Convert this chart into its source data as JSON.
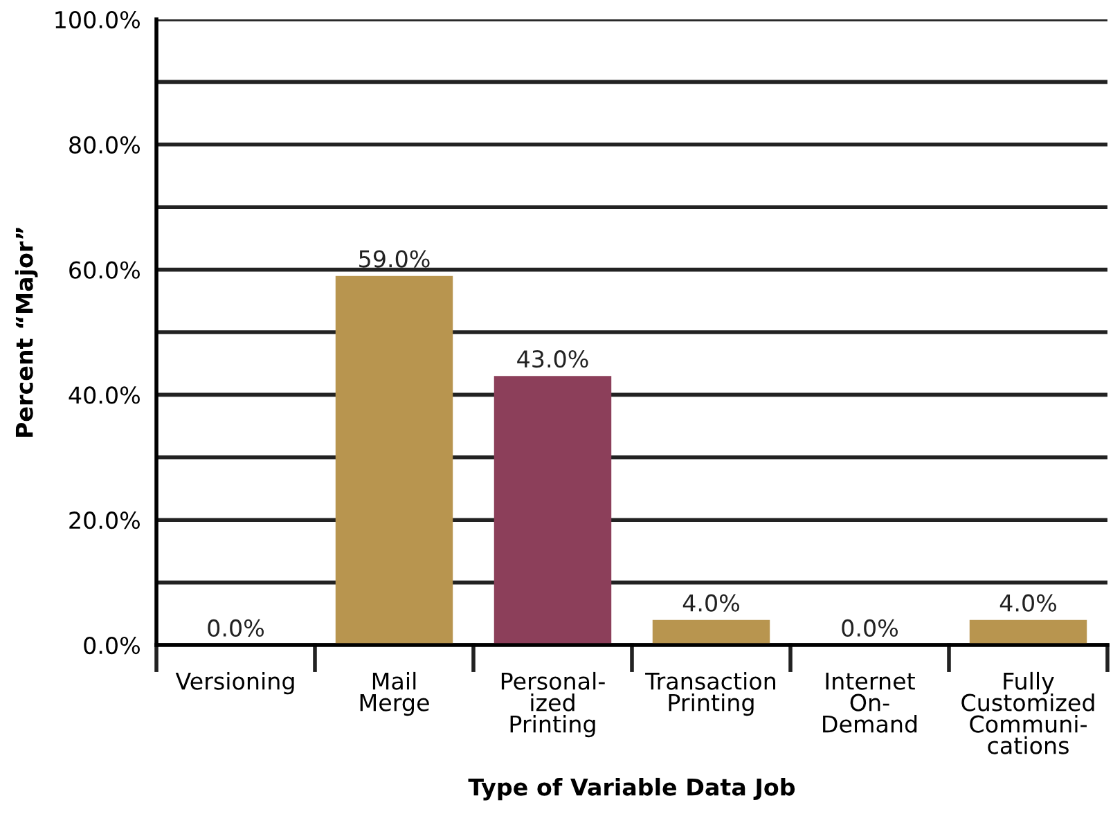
{
  "chart_data": {
    "type": "bar",
    "xlabel": "Type of Variable Data Job",
    "ylabel": "Percent “Major”",
    "categories": [
      "Versioning",
      "Mail\nMerge",
      "Personal-\nized\nPrinting",
      "Transaction\nPrinting",
      "Internet\nOn-\nDemand",
      "Fully\nCustomized\nCommuni-\ncations"
    ],
    "values": [
      0,
      59,
      43,
      4,
      0,
      4
    ],
    "colors": [
      "#b8954f",
      "#b8954f",
      "#8c3f5a",
      "#b8954f",
      "#b8954f",
      "#b8954f"
    ],
    "value_labels": [
      "0.0%",
      "59.0%",
      "43.0%",
      "4.0%",
      "0.0%",
      "4.0%"
    ],
    "ylim": [
      0,
      100
    ],
    "yticks": [
      {
        "value": 0,
        "label": "0.0%"
      },
      {
        "value": 10,
        "label": null
      },
      {
        "value": 20,
        "label": "20.0%"
      },
      {
        "value": 30,
        "label": null
      },
      {
        "value": 40,
        "label": "40.0%"
      },
      {
        "value": 50,
        "label": null
      },
      {
        "value": 60,
        "label": "60.0%"
      },
      {
        "value": 70,
        "label": null
      },
      {
        "value": 80,
        "label": "80.0%"
      },
      {
        "value": 90,
        "label": null
      },
      {
        "value": 100,
        "label": "100.0%"
      }
    ],
    "grid": "y",
    "legend": false
  }
}
